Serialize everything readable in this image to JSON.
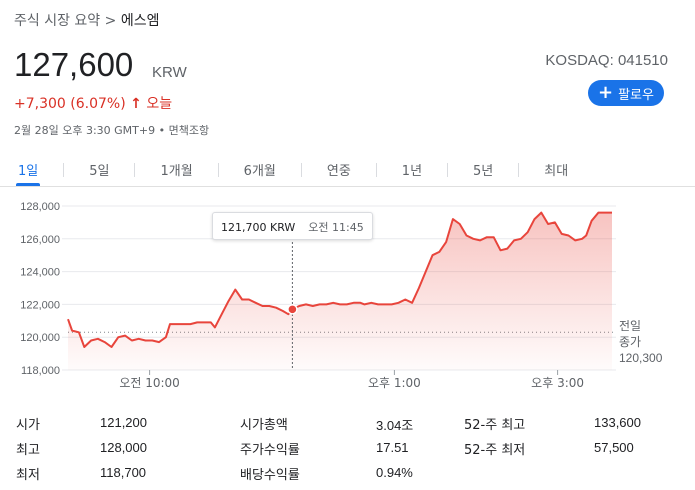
{
  "breadcrumb": {
    "prefix": "주식 시장 요약",
    "separator": ">",
    "current": "에스엠"
  },
  "quote": {
    "price": "127,600",
    "currency": "KRW",
    "ticker": "KOSDAQ: 041510",
    "change": "+7,300 (6.07%)",
    "change_arrow": "↑",
    "change_period": "오늘",
    "meta": "2월 28일 오후 3:30 GMT+9 • 면책조항"
  },
  "follow_button": {
    "icon": "plus-icon",
    "label": "팔로우"
  },
  "tabs": [
    {
      "label": "1일",
      "active": true
    },
    {
      "label": "5일",
      "active": false
    },
    {
      "label": "1개월",
      "active": false
    },
    {
      "label": "6개월",
      "active": false
    },
    {
      "label": "연중",
      "active": false
    },
    {
      "label": "1년",
      "active": false
    },
    {
      "label": "5년",
      "active": false
    },
    {
      "label": "최대",
      "active": false
    }
  ],
  "tooltip": {
    "price": "121,700 KRW",
    "time": "오전 11:45"
  },
  "prev_close": {
    "label_line1": "전일",
    "label_line2": "종가",
    "value": "120,300"
  },
  "colors": {
    "line": "#e8453c",
    "accent": "#1a73e8",
    "negative": "#d93025"
  },
  "chart_data": {
    "type": "line",
    "x_unit": "minutes after 09:00 KST",
    "x_ticks": [
      {
        "x": 60,
        "label": "오전 10:00"
      },
      {
        "x": 240,
        "label": "오후 1:00"
      },
      {
        "x": 360,
        "label": "오후 3:00"
      }
    ],
    "y_ticks": [
      "128,000",
      "126,000",
      "124,000",
      "122,000",
      "120,000",
      "118,000"
    ],
    "ylim": [
      118000,
      128500
    ],
    "xlim": [
      0,
      390
    ],
    "prev_close": 120300,
    "hover": {
      "x": 165,
      "y": 121700
    },
    "points": [
      [
        0,
        121100
      ],
      [
        3,
        120400
      ],
      [
        8,
        120300
      ],
      [
        12,
        119400
      ],
      [
        17,
        119800
      ],
      [
        22,
        119900
      ],
      [
        27,
        119700
      ],
      [
        32,
        119400
      ],
      [
        37,
        120000
      ],
      [
        42,
        120100
      ],
      [
        47,
        119800
      ],
      [
        52,
        119900
      ],
      [
        57,
        119800
      ],
      [
        62,
        119800
      ],
      [
        67,
        119700
      ],
      [
        72,
        120000
      ],
      [
        75,
        120800
      ],
      [
        80,
        120800
      ],
      [
        85,
        120800
      ],
      [
        90,
        120800
      ],
      [
        95,
        120900
      ],
      [
        100,
        120900
      ],
      [
        105,
        120900
      ],
      [
        108,
        120600
      ],
      [
        113,
        121400
      ],
      [
        118,
        122200
      ],
      [
        123,
        122900
      ],
      [
        128,
        122300
      ],
      [
        133,
        122300
      ],
      [
        138,
        122100
      ],
      [
        143,
        121900
      ],
      [
        148,
        121900
      ],
      [
        153,
        121800
      ],
      [
        158,
        121600
      ],
      [
        162,
        121400
      ],
      [
        165,
        121700
      ],
      [
        170,
        121900
      ],
      [
        175,
        122000
      ],
      [
        180,
        121900
      ],
      [
        185,
        122000
      ],
      [
        190,
        122000
      ],
      [
        195,
        122100
      ],
      [
        200,
        122000
      ],
      [
        205,
        122000
      ],
      [
        210,
        122100
      ],
      [
        215,
        122100
      ],
      [
        218,
        122000
      ],
      [
        223,
        122100
      ],
      [
        228,
        122000
      ],
      [
        233,
        122000
      ],
      [
        238,
        122000
      ],
      [
        243,
        122100
      ],
      [
        248,
        122300
      ],
      [
        253,
        122100
      ],
      [
        258,
        123000
      ],
      [
        263,
        124000
      ],
      [
        268,
        125000
      ],
      [
        273,
        125200
      ],
      [
        278,
        125800
      ],
      [
        283,
        127200
      ],
      [
        288,
        126900
      ],
      [
        293,
        126200
      ],
      [
        298,
        126000
      ],
      [
        303,
        125900
      ],
      [
        308,
        126100
      ],
      [
        313,
        126100
      ],
      [
        318,
        125300
      ],
      [
        323,
        125400
      ],
      [
        328,
        125900
      ],
      [
        333,
        126000
      ],
      [
        338,
        126400
      ],
      [
        343,
        127200
      ],
      [
        348,
        127600
      ],
      [
        353,
        126900
      ],
      [
        358,
        127000
      ],
      [
        363,
        126300
      ],
      [
        368,
        126200
      ],
      [
        373,
        125900
      ],
      [
        378,
        126000
      ],
      [
        381,
        126200
      ],
      [
        385,
        127100
      ],
      [
        390,
        127600
      ],
      [
        395,
        127600
      ],
      [
        400,
        127600
      ]
    ]
  },
  "stats": [
    [
      {
        "label": "시가",
        "value": "121,200"
      },
      {
        "label": "시가총액",
        "value": "3.04조"
      },
      {
        "label": "52-주 최고",
        "value": "133,600"
      }
    ],
    [
      {
        "label": "최고",
        "value": "128,000"
      },
      {
        "label": "주가수익률",
        "value": "17.51"
      },
      {
        "label": "52-주 최저",
        "value": "57,500"
      }
    ],
    [
      {
        "label": "최저",
        "value": "118,700"
      },
      {
        "label": "배당수익률",
        "value": "0.94%"
      }
    ]
  ]
}
